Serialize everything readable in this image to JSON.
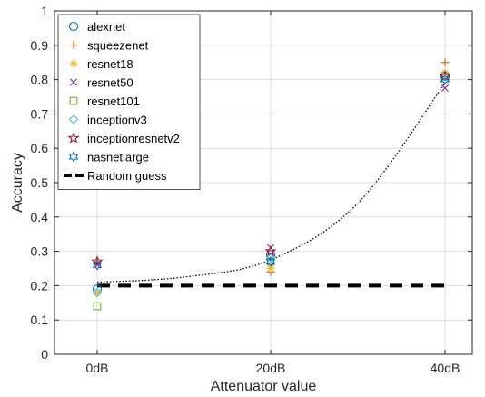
{
  "chart_data": {
    "type": "scatter",
    "xlabel": "Attenuator value",
    "ylabel": "Accuracy",
    "categories": [
      "0dB",
      "20dB",
      "40dB"
    ],
    "ylim": [
      0,
      1
    ],
    "yticks": [
      0,
      0.1,
      0.2,
      0.3,
      0.4,
      0.5,
      0.6,
      0.7,
      0.8,
      0.9,
      1
    ],
    "grid": true,
    "legend_position": "top-left",
    "series": [
      {
        "name": "alexnet",
        "marker": "circle",
        "color": "#0072BD",
        "values": [
          0.19,
          0.29,
          0.81
        ]
      },
      {
        "name": "squeezenet",
        "marker": "plus",
        "color": "#D95319",
        "values": [
          0.27,
          0.24,
          0.85
        ]
      },
      {
        "name": "resnet18",
        "marker": "asterisk",
        "color": "#EDB120",
        "values": [
          0.18,
          0.25,
          0.82
        ]
      },
      {
        "name": "resnet50",
        "marker": "x",
        "color": "#7E2F8E",
        "values": [
          0.26,
          0.31,
          0.775
        ]
      },
      {
        "name": "resnet101",
        "marker": "square",
        "color": "#77AC30",
        "values": [
          0.14,
          0.27,
          0.81
        ]
      },
      {
        "name": "inceptionv3",
        "marker": "diamond",
        "color": "#4DBEEE",
        "values": [
          0.18,
          0.28,
          0.8
        ]
      },
      {
        "name": "inceptionresnetv2",
        "marker": "pentagram",
        "color": "#A2142F",
        "values": [
          0.27,
          0.3,
          0.81
        ]
      },
      {
        "name": "nasnetlarge",
        "marker": "hexagram",
        "color": "#0072BD",
        "values": [
          0.26,
          0.27,
          0.8
        ]
      }
    ],
    "reference_line": {
      "name": "Random guess",
      "value": 0.2,
      "color": "#000000",
      "style": "dashed"
    },
    "trend_curve": {
      "style": "dotted",
      "color": "#000000",
      "points": [
        [
          0,
          0.21
        ],
        [
          0.5,
          0.225
        ],
        [
          1,
          0.275
        ],
        [
          1.5,
          0.44
        ],
        [
          2,
          0.79
        ]
      ]
    }
  }
}
